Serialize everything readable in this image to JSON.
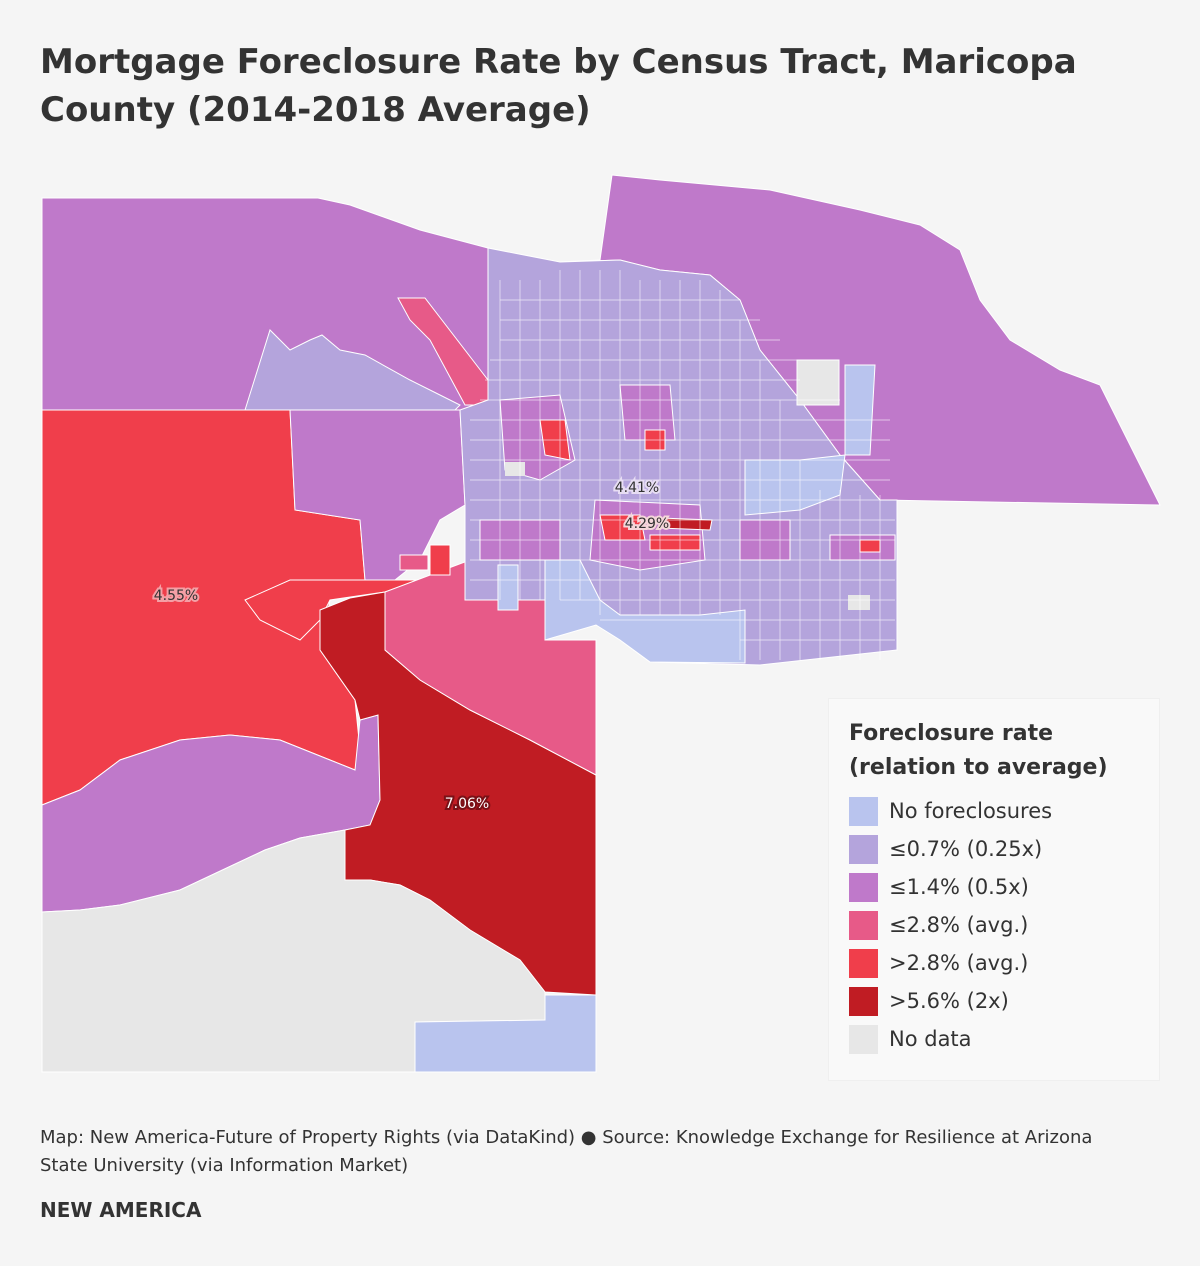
{
  "title": "Mortgage Foreclosure Rate by Census Tract, Maricopa County (2014-2018 Average)",
  "colors": {
    "no_foreclosures": "#b9c4ee",
    "le_0_7": "#b4a4dc",
    "le_1_4": "#bf79ca",
    "le_2_8": "#e75a88",
    "gt_2_8": "#f03e4b",
    "gt_5_6": "#c01c23",
    "no_data": "#e7e7e7",
    "tract_border": "#ffffff"
  },
  "map_labels": {
    "west": "4.55%",
    "south": "7.06%",
    "central_north": "4.41%",
    "central_south": "4.29%"
  },
  "legend": {
    "title": "Foreclosure rate (relation to average)",
    "items": [
      {
        "label": "No foreclosures",
        "color": "#b9c4ee"
      },
      {
        "label": "≤0.7% (0.25x)",
        "color": "#b4a4dc"
      },
      {
        "label": "≤1.4% (0.5x)",
        "color": "#bf79ca"
      },
      {
        "label": "≤2.8% (avg.)",
        "color": "#e75a88"
      },
      {
        "label": ">2.8% (avg.)",
        "color": "#f03e4b"
      },
      {
        "label": ">5.6% (2x)",
        "color": "#c01c23"
      },
      {
        "label": "No data",
        "color": "#e7e7e7"
      }
    ]
  },
  "source": "Map: New America-Future of Property Rights (via DataKind) ● Source: Knowledge Exchange for Resilience at Arizona State University (via Information Market)",
  "brand": "NEW AMERICA"
}
